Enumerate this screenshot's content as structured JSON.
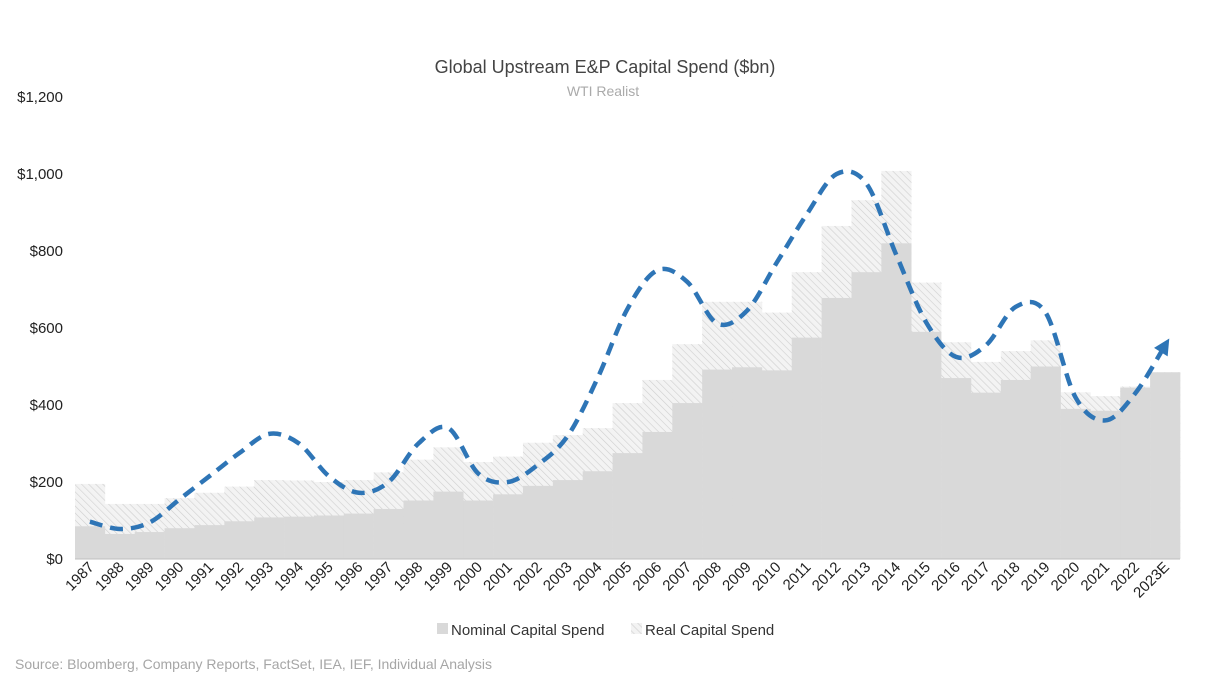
{
  "chart_data": {
    "type": "bar",
    "title": "Global Upstream E&P Capital Spend ($bn)",
    "subtitle": "WTI Realist",
    "categories": [
      "1987",
      "1988",
      "1989",
      "1990",
      "1991",
      "1992",
      "1993",
      "1994",
      "1995",
      "1996",
      "1997",
      "1998",
      "1999",
      "2000",
      "2001",
      "2002",
      "2003",
      "2004",
      "2005",
      "2006",
      "2007",
      "2008",
      "2009",
      "2010",
      "2011",
      "2012",
      "2013",
      "2014",
      "2015",
      "2016",
      "2017",
      "2018",
      "2019",
      "2020",
      "2021",
      "2022",
      "2023E"
    ],
    "series": [
      {
        "name": "Nominal Capital Spend",
        "color": "#d9d9d9",
        "values": [
          85,
          65,
          70,
          80,
          88,
          98,
          108,
          110,
          113,
          118,
          130,
          152,
          175,
          152,
          168,
          190,
          205,
          228,
          275,
          330,
          405,
          492,
          498,
          490,
          575,
          678,
          745,
          820,
          590,
          470,
          432,
          465,
          500,
          390,
          385,
          445,
          485
        ]
      },
      {
        "name": "Real Capital Spend",
        "color": "#e6e6e6",
        "values": [
          195,
          143,
          143,
          158,
          172,
          188,
          205,
          204,
          200,
          205,
          225,
          258,
          290,
          252,
          266,
          302,
          322,
          340,
          405,
          465,
          558,
          668,
          668,
          640,
          745,
          865,
          932,
          1008,
          718,
          563,
          512,
          540,
          568,
          433,
          423,
          448,
          485
        ]
      }
    ],
    "trend": {
      "color": "#2e75b6",
      "values": [
        97,
        78,
        95,
        155,
        215,
        275,
        325,
        300,
        215,
        172,
        200,
        300,
        340,
        222,
        200,
        245,
        320,
        470,
        650,
        750,
        720,
        612,
        645,
        770,
        895,
        1000,
        975,
        790,
        615,
        525,
        555,
        655,
        640,
        420,
        360,
        430,
        555
      ]
    },
    "ylim": [
      0,
      1200
    ],
    "yticks": [
      0,
      200,
      400,
      600,
      800,
      1000,
      1200
    ],
    "ytick_labels": [
      "$0",
      "$200",
      "$400",
      "$600",
      "$800",
      "$1,000",
      "$1,200"
    ],
    "grid": false,
    "legend_position": "bottom"
  },
  "source": "Source: Bloomberg, Company Reports, FactSet, IEA, IEF, Individual Analysis"
}
